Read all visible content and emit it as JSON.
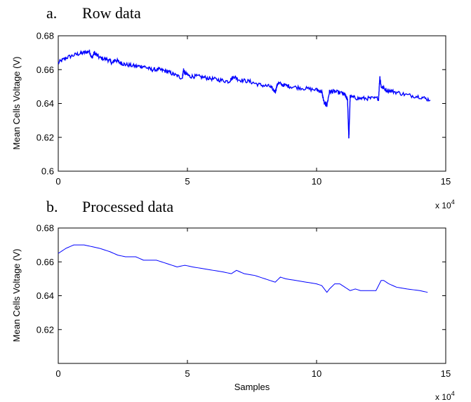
{
  "panels": [
    {
      "caption_letter": "a.",
      "caption_text": "Row data",
      "chart_data": {
        "type": "line",
        "title": "Row data",
        "xlabel": "",
        "ylabel": "Mean Cells Voltage (V)",
        "x_multiplier_label": "x 10",
        "x_multiplier_exp": "4",
        "xlim": [
          0,
          15
        ],
        "ylim": [
          0.6,
          0.68
        ],
        "xticks": [
          0,
          5,
          10,
          15
        ],
        "xtick_labels": [
          "0",
          "5",
          "10",
          "15"
        ],
        "yticks": [
          0.6,
          0.62,
          0.64,
          0.66,
          0.68
        ],
        "ytick_labels": [
          "0.6",
          "0.62",
          "0.64",
          "0.66",
          "0.68"
        ],
        "series_color": "#0000ff",
        "noise_amplitude": 0.0012,
        "series": [
          {
            "x": [
              0,
              0.3,
              0.7,
              1.0,
              1.2,
              1.3,
              1.4,
              1.6,
              1.9,
              2.1,
              2.2,
              2.4,
              2.6,
              3.0,
              3.3,
              3.6,
              3.9,
              4.2,
              4.5,
              4.8,
              4.85,
              4.9,
              5.1,
              5.4,
              5.8,
              6.2,
              6.6,
              6.8,
              7.0,
              7.4,
              7.8,
              8.2,
              8.4,
              8.5,
              8.7,
              9.0,
              9.5,
              10.0,
              10.2,
              10.3,
              10.4,
              10.5,
              10.7,
              11.0,
              11.1,
              11.2,
              11.25,
              11.3,
              11.6,
              12.0,
              12.4,
              12.45,
              12.5,
              12.7,
              13.0,
              13.5,
              14.0,
              14.4
            ],
            "y": [
              0.664,
              0.667,
              0.669,
              0.67,
              0.671,
              0.667,
              0.67,
              0.667,
              0.666,
              0.664,
              0.666,
              0.664,
              0.663,
              0.662,
              0.662,
              0.66,
              0.66,
              0.659,
              0.657,
              0.655,
              0.66,
              0.658,
              0.656,
              0.656,
              0.655,
              0.654,
              0.653,
              0.656,
              0.654,
              0.653,
              0.651,
              0.65,
              0.647,
              0.652,
              0.651,
              0.65,
              0.649,
              0.648,
              0.647,
              0.64,
              0.639,
              0.647,
              0.647,
              0.646,
              0.645,
              0.642,
              0.619,
              0.644,
              0.643,
              0.643,
              0.643,
              0.656,
              0.65,
              0.648,
              0.647,
              0.645,
              0.644,
              0.642
            ]
          }
        ]
      }
    },
    {
      "caption_letter": "b.",
      "caption_text": "Processed data",
      "chart_data": {
        "type": "line",
        "title": "Processed data",
        "xlabel": "Samples",
        "ylabel": "Mean Cells Voltage (V)",
        "x_multiplier_label": "x 10",
        "x_multiplier_exp": "4",
        "xlim": [
          0,
          15
        ],
        "ylim": [
          0.6,
          0.68
        ],
        "xticks": [
          0,
          5,
          10,
          15
        ],
        "xtick_labels": [
          "0",
          "5",
          "10",
          "15"
        ],
        "yticks": [
          0.62,
          0.64,
          0.66,
          0.68
        ],
        "ytick_labels": [
          "0.62",
          "0.64",
          "0.66",
          "0.68"
        ],
        "series_color": "#0000ff",
        "noise_amplitude": 0,
        "series": [
          {
            "x": [
              0,
              0.3,
              0.6,
              1.0,
              1.3,
              1.6,
              2.0,
              2.3,
              2.6,
              3.0,
              3.3,
              3.5,
              3.8,
              4.2,
              4.6,
              4.9,
              5.2,
              5.6,
              6.0,
              6.4,
              6.7,
              6.9,
              7.2,
              7.6,
              8.0,
              8.4,
              8.6,
              8.8,
              9.2,
              9.6,
              10.0,
              10.2,
              10.4,
              10.5,
              10.7,
              10.9,
              11.1,
              11.3,
              11.5,
              11.7,
              12.0,
              12.3,
              12.5,
              12.6,
              12.8,
              13.1,
              13.5,
              14.0,
              14.3
            ],
            "y": [
              0.665,
              0.668,
              0.67,
              0.67,
              0.669,
              0.668,
              0.666,
              0.664,
              0.663,
              0.663,
              0.661,
              0.661,
              0.661,
              0.659,
              0.657,
              0.658,
              0.657,
              0.656,
              0.655,
              0.654,
              0.653,
              0.655,
              0.653,
              0.652,
              0.65,
              0.648,
              0.651,
              0.65,
              0.649,
              0.648,
              0.647,
              0.646,
              0.642,
              0.644,
              0.647,
              0.647,
              0.645,
              0.643,
              0.644,
              0.643,
              0.643,
              0.643,
              0.649,
              0.649,
              0.647,
              0.645,
              0.644,
              0.643,
              0.642
            ]
          }
        ]
      }
    }
  ]
}
